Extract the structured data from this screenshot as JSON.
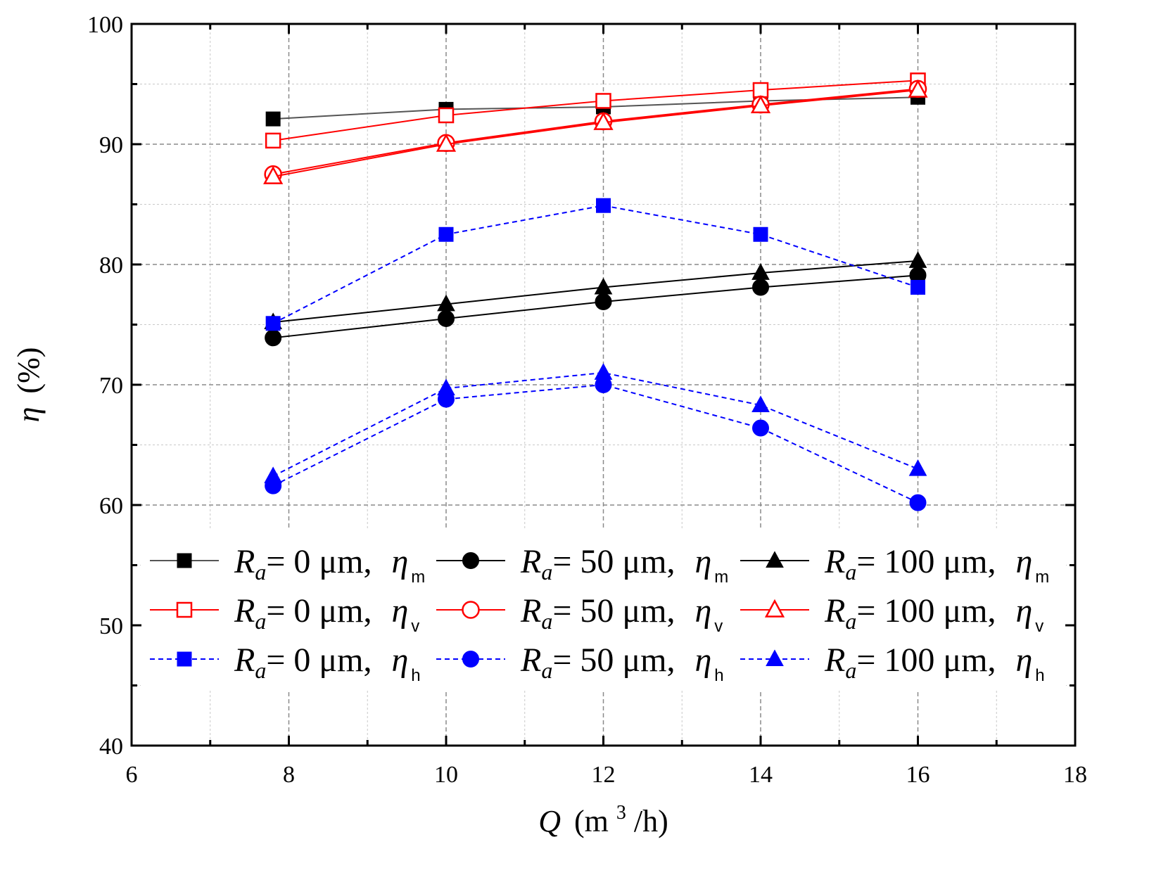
{
  "chart_data": {
    "type": "line",
    "title": "",
    "xlabel": {
      "symbol": "Q",
      "unit_prefix": "(m",
      "superscript": "3",
      "unit_suffix": "/h)"
    },
    "ylabel": {
      "symbol": "η",
      "unit": "(%)"
    },
    "xlim": [
      6,
      18
    ],
    "ylim": [
      40,
      100
    ],
    "x_ticks": [
      "6",
      "8",
      "10",
      "12",
      "14",
      "16",
      "18"
    ],
    "y_ticks": [
      "40",
      "50",
      "60",
      "70",
      "80",
      "90",
      "100"
    ],
    "grid": true,
    "legend_position": "lower-center",
    "x": [
      7.8,
      10,
      12,
      14,
      16
    ],
    "series": [
      {
        "name": "Ra= 0 μm, ηm",
        "ra_label": "= 0 μm,",
        "eta_sub": "m",
        "color": "#000000",
        "line_color": "#555555",
        "marker": "square",
        "filled": true,
        "dashed": false,
        "values": [
          92.1,
          92.9,
          93.1,
          93.6,
          93.9
        ]
      },
      {
        "name": "Ra= 50 μm, ηm",
        "ra_label": "= 50 μm,",
        "eta_sub": "m",
        "color": "#000000",
        "line_color": "#000000",
        "marker": "circle",
        "filled": true,
        "dashed": false,
        "values": [
          73.9,
          75.5,
          76.9,
          78.1,
          79.1
        ]
      },
      {
        "name": "Ra= 100 μm, ηm",
        "ra_label": "= 100 μm,",
        "eta_sub": "m",
        "color": "#000000",
        "line_color": "#000000",
        "marker": "triangle",
        "filled": true,
        "dashed": false,
        "values": [
          75.2,
          76.7,
          78.1,
          79.3,
          80.3
        ]
      },
      {
        "name": "Ra= 0 μm, ηv",
        "ra_label": "= 0 μm,",
        "eta_sub": "v",
        "color": "#ff0000",
        "line_color": "#ff0000",
        "marker": "square",
        "filled": false,
        "dashed": false,
        "values": [
          90.3,
          92.4,
          93.6,
          94.5,
          95.3
        ]
      },
      {
        "name": "Ra= 50 μm, ηv",
        "ra_label": "= 50 μm,",
        "eta_sub": "v",
        "color": "#ff0000",
        "line_color": "#ff0000",
        "marker": "circle",
        "filled": false,
        "dashed": false,
        "values": [
          87.5,
          90.1,
          91.9,
          93.3,
          94.6
        ]
      },
      {
        "name": "Ra= 100 μm, ηv",
        "ra_label": "= 100 μm,",
        "eta_sub": "v",
        "color": "#ff0000",
        "line_color": "#ff0000",
        "marker": "triangle",
        "filled": false,
        "dashed": false,
        "values": [
          87.3,
          90.0,
          91.8,
          93.2,
          94.5
        ]
      },
      {
        "name": "Ra= 0 μm, ηh",
        "ra_label": "= 0 μm,",
        "eta_sub": "h",
        "color": "#0000ff",
        "line_color": "#0000ff",
        "marker": "square",
        "filled": true,
        "dashed": true,
        "values": [
          75.1,
          82.5,
          84.9,
          82.5,
          78.1
        ]
      },
      {
        "name": "Ra= 50 μm, ηh",
        "ra_label": "= 50 μm,",
        "eta_sub": "h",
        "color": "#0000ff",
        "line_color": "#0000ff",
        "marker": "circle",
        "filled": true,
        "dashed": true,
        "values": [
          61.6,
          68.8,
          70.0,
          66.4,
          60.2
        ]
      },
      {
        "name": "Ra= 100 μm, ηh",
        "ra_label": "= 100 μm,",
        "eta_sub": "h",
        "color": "#0000ff",
        "line_color": "#0000ff",
        "marker": "triangle",
        "filled": true,
        "dashed": true,
        "values": [
          62.4,
          69.7,
          71.0,
          68.3,
          63.0
        ]
      }
    ],
    "legend_order": [
      0,
      1,
      2,
      3,
      4,
      5,
      6,
      7,
      8
    ],
    "legend_ra_symbol": "R",
    "legend_ra_sub": "a",
    "legend_eta_symbol": "η"
  }
}
